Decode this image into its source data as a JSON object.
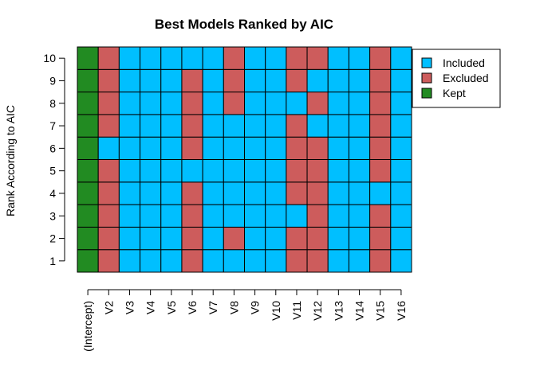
{
  "chart_data": {
    "type": "heatmap",
    "title": "Best Models Ranked by AIC",
    "xlabel": "",
    "ylabel": "Rank According to AIC",
    "variables": [
      "(Intercept)",
      "V2",
      "V3",
      "V4",
      "V5",
      "V6",
      "V7",
      "V8",
      "V9",
      "V10",
      "V11",
      "V12",
      "V13",
      "V14",
      "V15",
      "V16"
    ],
    "ranks": [
      1,
      2,
      3,
      4,
      5,
      6,
      7,
      8,
      9,
      10
    ],
    "categories": [
      "Included",
      "Excluded",
      "Kept"
    ],
    "colors": {
      "Included": "#00BFFF",
      "Excluded": "#CD5C5C",
      "Kept": "#228B22"
    },
    "legend_position": "top-right",
    "matrix_by_rank": {
      "10": [
        "Kept",
        "Excluded",
        "Included",
        "Included",
        "Included",
        "Included",
        "Included",
        "Excluded",
        "Included",
        "Included",
        "Excluded",
        "Excluded",
        "Included",
        "Included",
        "Excluded",
        "Included"
      ],
      "9": [
        "Kept",
        "Excluded",
        "Included",
        "Included",
        "Included",
        "Excluded",
        "Included",
        "Excluded",
        "Included",
        "Included",
        "Excluded",
        "Included",
        "Included",
        "Included",
        "Excluded",
        "Included"
      ],
      "8": [
        "Kept",
        "Excluded",
        "Included",
        "Included",
        "Included",
        "Excluded",
        "Included",
        "Excluded",
        "Included",
        "Included",
        "Included",
        "Excluded",
        "Included",
        "Included",
        "Excluded",
        "Included"
      ],
      "7": [
        "Kept",
        "Excluded",
        "Included",
        "Included",
        "Included",
        "Excluded",
        "Included",
        "Included",
        "Included",
        "Included",
        "Excluded",
        "Included",
        "Included",
        "Included",
        "Excluded",
        "Included"
      ],
      "6": [
        "Kept",
        "Included",
        "Included",
        "Included",
        "Included",
        "Excluded",
        "Included",
        "Included",
        "Included",
        "Included",
        "Excluded",
        "Excluded",
        "Included",
        "Included",
        "Excluded",
        "Included"
      ],
      "5": [
        "Kept",
        "Excluded",
        "Included",
        "Included",
        "Included",
        "Included",
        "Included",
        "Included",
        "Included",
        "Included",
        "Excluded",
        "Excluded",
        "Included",
        "Included",
        "Excluded",
        "Included"
      ],
      "4": [
        "Kept",
        "Excluded",
        "Included",
        "Included",
        "Included",
        "Excluded",
        "Included",
        "Included",
        "Included",
        "Included",
        "Excluded",
        "Excluded",
        "Included",
        "Included",
        "Included",
        "Included"
      ],
      "3": [
        "Kept",
        "Excluded",
        "Included",
        "Included",
        "Included",
        "Excluded",
        "Included",
        "Included",
        "Included",
        "Included",
        "Included",
        "Excluded",
        "Included",
        "Included",
        "Excluded",
        "Included"
      ],
      "2": [
        "Kept",
        "Excluded",
        "Included",
        "Included",
        "Included",
        "Excluded",
        "Included",
        "Excluded",
        "Included",
        "Included",
        "Excluded",
        "Excluded",
        "Included",
        "Included",
        "Excluded",
        "Included"
      ],
      "1": [
        "Kept",
        "Excluded",
        "Included",
        "Included",
        "Included",
        "Excluded",
        "Included",
        "Included",
        "Included",
        "Included",
        "Excluded",
        "Excluded",
        "Included",
        "Included",
        "Excluded",
        "Included"
      ]
    }
  }
}
